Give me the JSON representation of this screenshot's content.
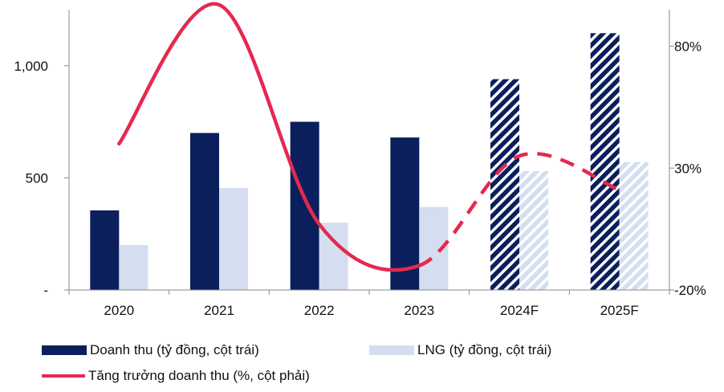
{
  "chart_data": {
    "type": "bar",
    "categories": [
      "2020",
      "2021",
      "2022",
      "2023",
      "2024F",
      "2025F"
    ],
    "forecast_categories": [
      "2024F",
      "2025F"
    ],
    "series": [
      {
        "name": "Doanh thu (tỷ đồng, cột trái)",
        "type": "bar",
        "axis": "left",
        "color": "#0b1f5c",
        "values": [
          355,
          700,
          750,
          680,
          940,
          1145
        ]
      },
      {
        "name": "LNG (tỷ đồng, cột trái)",
        "type": "bar",
        "axis": "left",
        "color": "#d4def0",
        "values": [
          200,
          455,
          300,
          370,
          530,
          570
        ]
      },
      {
        "name": "Tăng trưởng doanh thu (%, cột phải)",
        "type": "line",
        "axis": "right",
        "color": "#e4294f",
        "values": [
          40,
          97,
          7,
          -10,
          35,
          21
        ]
      }
    ],
    "left_axis": {
      "min": 0,
      "max": 1250,
      "ticks": [
        0,
        500,
        1000
      ],
      "tick_labels": [
        "-",
        "500",
        "1,000"
      ]
    },
    "right_axis": {
      "min": -20,
      "max": 95,
      "ticks": [
        -20,
        30,
        80
      ],
      "tick_labels": [
        "-20%",
        "30%",
        "80%"
      ]
    },
    "grid": false,
    "legend_position": "bottom"
  }
}
